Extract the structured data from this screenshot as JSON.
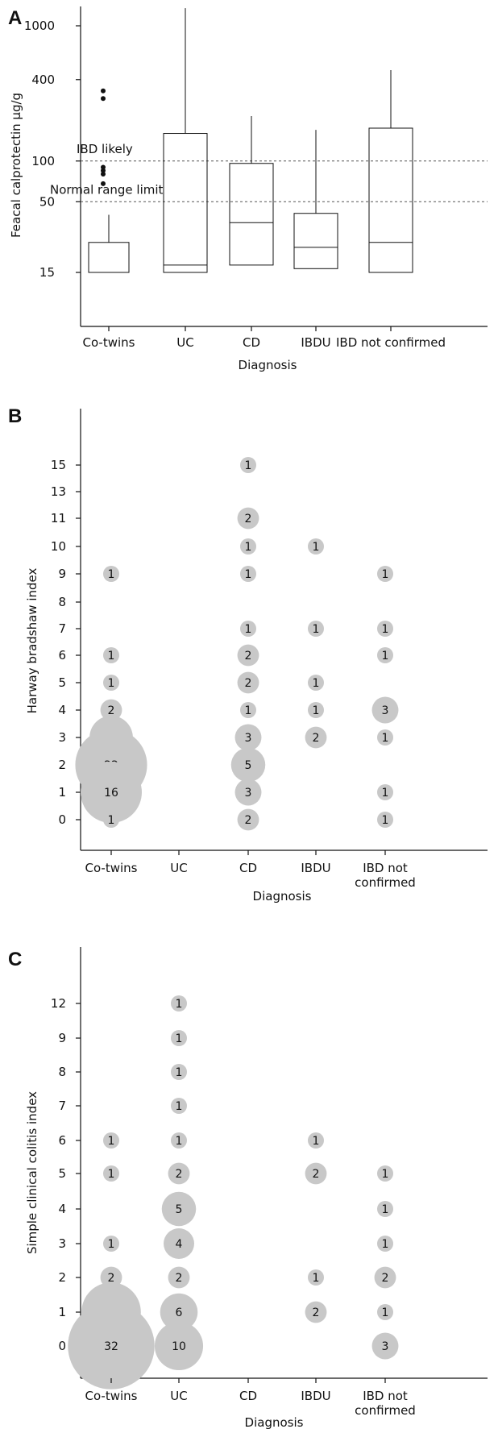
{
  "chart_data": [
    {
      "panel": "A",
      "type": "box",
      "ylabel": "Feacal calprotectin µg/g",
      "xlabel": "Diagnosis",
      "yscale": "log",
      "ylim": [
        12,
        1500
      ],
      "yticks": [
        1000,
        400,
        100,
        50,
        15
      ],
      "categories": [
        "Co-twins",
        "UC",
        "CD",
        "IBDU",
        "IBD not confirmed"
      ],
      "boxes": [
        {
          "category": "Co-twins",
          "whisker_low": 15,
          "q1": 15,
          "median": 15,
          "q3": 25,
          "whisker_high": 40,
          "outliers": [
            330,
            290,
            90,
            85,
            80,
            68
          ]
        },
        {
          "category": "UC",
          "whisker_low": 15,
          "q1": 15,
          "median": 17,
          "q3": 160,
          "whisker_high": 1350,
          "outliers": []
        },
        {
          "category": "CD",
          "whisker_low": 17,
          "q1": 17,
          "median": 35,
          "q3": 96,
          "whisker_high": 215,
          "outliers": []
        },
        {
          "category": "IBDU",
          "whisker_low": 16,
          "q1": 16,
          "median": 23,
          "q3": 41,
          "whisker_high": 170,
          "outliers": []
        },
        {
          "category": "IBD not confirmed",
          "whisker_low": 15,
          "q1": 15,
          "median": 25,
          "q3": 175,
          "whisker_high": 470,
          "outliers": []
        }
      ],
      "reference_lines": [
        {
          "value": 100,
          "label": "IBD likely"
        },
        {
          "value": 50,
          "label": "Normal range limit"
        }
      ]
    },
    {
      "panel": "B",
      "type": "bubble",
      "ylabel": "Harway bradshaw index",
      "xlabel": "Diagnosis",
      "categories": [
        "Co-twins",
        "UC",
        "CD",
        "IBDU",
        "IBD not confirmed"
      ],
      "category_lines": [
        [
          "Co-twins"
        ],
        [
          "UC"
        ],
        [
          "CD"
        ],
        [
          "IBDU"
        ],
        [
          "IBD not",
          "confirmed"
        ]
      ],
      "yticks": [
        "0",
        "1",
        "2",
        "3",
        "4",
        "5",
        "6",
        "7",
        "8",
        "9",
        "10",
        "11",
        "13",
        "15"
      ],
      "points": [
        {
          "category": "Co-twins",
          "y": "9",
          "count": 1
        },
        {
          "category": "Co-twins",
          "y": "6",
          "count": 1
        },
        {
          "category": "Co-twins",
          "y": "5",
          "count": 1
        },
        {
          "category": "Co-twins",
          "y": "4",
          "count": 2
        },
        {
          "category": "Co-twins",
          "y": "3",
          "count": 8
        },
        {
          "category": "Co-twins",
          "y": "2",
          "count": 22
        },
        {
          "category": "Co-twins",
          "y": "1",
          "count": 16
        },
        {
          "category": "Co-twins",
          "y": "0",
          "count": 1
        },
        {
          "category": "CD",
          "y": "15",
          "count": 1
        },
        {
          "category": "CD",
          "y": "11",
          "count": 2
        },
        {
          "category": "CD",
          "y": "10",
          "count": 1
        },
        {
          "category": "CD",
          "y": "9",
          "count": 1
        },
        {
          "category": "CD",
          "y": "7",
          "count": 1
        },
        {
          "category": "CD",
          "y": "6",
          "count": 2
        },
        {
          "category": "CD",
          "y": "5",
          "count": 2
        },
        {
          "category": "CD",
          "y": "4",
          "count": 1
        },
        {
          "category": "CD",
          "y": "3",
          "count": 3
        },
        {
          "category": "CD",
          "y": "2",
          "count": 5
        },
        {
          "category": "CD",
          "y": "1",
          "count": 3
        },
        {
          "category": "CD",
          "y": "0",
          "count": 2
        },
        {
          "category": "IBDU",
          "y": "10",
          "count": 1
        },
        {
          "category": "IBDU",
          "y": "7",
          "count": 1
        },
        {
          "category": "IBDU",
          "y": "5",
          "count": 1
        },
        {
          "category": "IBDU",
          "y": "4",
          "count": 1
        },
        {
          "category": "IBDU",
          "y": "3",
          "count": 2
        },
        {
          "category": "IBD not confirmed",
          "y": "9",
          "count": 1
        },
        {
          "category": "IBD not confirmed",
          "y": "7",
          "count": 1
        },
        {
          "category": "IBD not confirmed",
          "y": "6",
          "count": 1
        },
        {
          "category": "IBD not confirmed",
          "y": "4",
          "count": 3
        },
        {
          "category": "IBD not confirmed",
          "y": "3",
          "count": 1
        },
        {
          "category": "IBD not confirmed",
          "y": "1",
          "count": 1
        },
        {
          "category": "IBD not confirmed",
          "y": "0",
          "count": 1
        }
      ]
    },
    {
      "panel": "C",
      "type": "bubble",
      "ylabel": "Simple clinical colitis index",
      "xlabel": "Diagnosis",
      "categories": [
        "Co-twins",
        "UC",
        "CD",
        "IBDU",
        "IBD not confirmed"
      ],
      "category_lines": [
        [
          "Co-twins"
        ],
        [
          "UC"
        ],
        [
          "CD"
        ],
        [
          "IBDU"
        ],
        [
          "IBD not",
          "confirmed"
        ]
      ],
      "yticks": [
        "0",
        "1",
        "2",
        "3",
        "4",
        "5",
        "6",
        "7",
        "8",
        "9",
        "12"
      ],
      "points": [
        {
          "category": "Co-twins",
          "y": "6",
          "count": 1
        },
        {
          "category": "Co-twins",
          "y": "5",
          "count": 1
        },
        {
          "category": "Co-twins",
          "y": "3",
          "count": 1
        },
        {
          "category": "Co-twins",
          "y": "2",
          "count": 2
        },
        {
          "category": "Co-twins",
          "y": "1",
          "count": 15
        },
        {
          "category": "Co-twins",
          "y": "0",
          "count": 32
        },
        {
          "category": "UC",
          "y": "12",
          "count": 1
        },
        {
          "category": "UC",
          "y": "9",
          "count": 1
        },
        {
          "category": "UC",
          "y": "8",
          "count": 1
        },
        {
          "category": "UC",
          "y": "7",
          "count": 1
        },
        {
          "category": "UC",
          "y": "6",
          "count": 1
        },
        {
          "category": "UC",
          "y": "5",
          "count": 2
        },
        {
          "category": "UC",
          "y": "4",
          "count": 5
        },
        {
          "category": "UC",
          "y": "3",
          "count": 4
        },
        {
          "category": "UC",
          "y": "2",
          "count": 2
        },
        {
          "category": "UC",
          "y": "1",
          "count": 6
        },
        {
          "category": "UC",
          "y": "0",
          "count": 10
        },
        {
          "category": "IBDU",
          "y": "6",
          "count": 1
        },
        {
          "category": "IBDU",
          "y": "5",
          "count": 2
        },
        {
          "category": "IBDU",
          "y": "2",
          "count": 1
        },
        {
          "category": "IBDU",
          "y": "1",
          "count": 2
        },
        {
          "category": "IBD not confirmed",
          "y": "5",
          "count": 1
        },
        {
          "category": "IBD not confirmed",
          "y": "4",
          "count": 1
        },
        {
          "category": "IBD not confirmed",
          "y": "3",
          "count": 1
        },
        {
          "category": "IBD not confirmed",
          "y": "2",
          "count": 2
        },
        {
          "category": "IBD not confirmed",
          "y": "1",
          "count": 1
        },
        {
          "category": "IBD not confirmed",
          "y": "0",
          "count": 3
        }
      ]
    }
  ],
  "colors": {
    "bubble_fill": "#c8c8c8",
    "line": "#111111",
    "reference_line": "#555555"
  }
}
